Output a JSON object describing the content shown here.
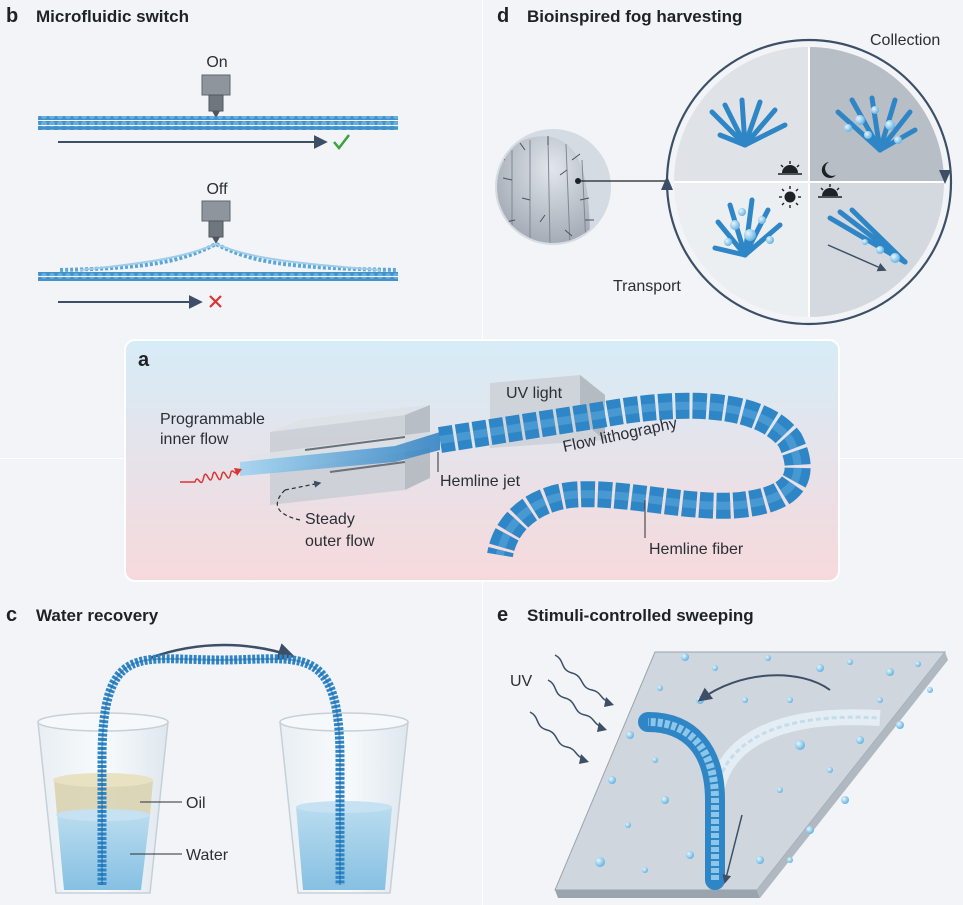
{
  "panels": {
    "b": {
      "letter": "b",
      "title": "Microfluidic switch",
      "on_label": "On",
      "off_label": "Off"
    },
    "d": {
      "letter": "d",
      "title": "Bioinspired fog harvesting",
      "collection_label": "Collection",
      "transport_label": "Transport"
    },
    "a": {
      "letter": "a",
      "uv_light_label": "UV light",
      "inner_flow_label_line1": "Programmable",
      "inner_flow_label_line2": "inner flow",
      "flow_lithography_label": "Flow lithography",
      "hemline_jet_label": "Hemline jet",
      "outer_flow_label_line1": "Steady",
      "outer_flow_label_line2": "outer flow",
      "hemline_fiber_label": "Hemline fiber"
    },
    "c": {
      "letter": "c",
      "title": "Water recovery",
      "oil_label": "Oil",
      "water_label": "Water"
    },
    "e": {
      "letter": "e",
      "title": "Stimuli-controlled sweeping",
      "uv_label": "UV"
    }
  },
  "colors": {
    "fiber_blue": "#2f86c6",
    "fiber_dark": "#1f6aa8",
    "check_green": "#3aa33a",
    "cross_red": "#d33",
    "arrow_gray": "#3d4f66",
    "panel_a_top": "#d6ecf7",
    "panel_a_bottom": "#f7d9dc"
  }
}
